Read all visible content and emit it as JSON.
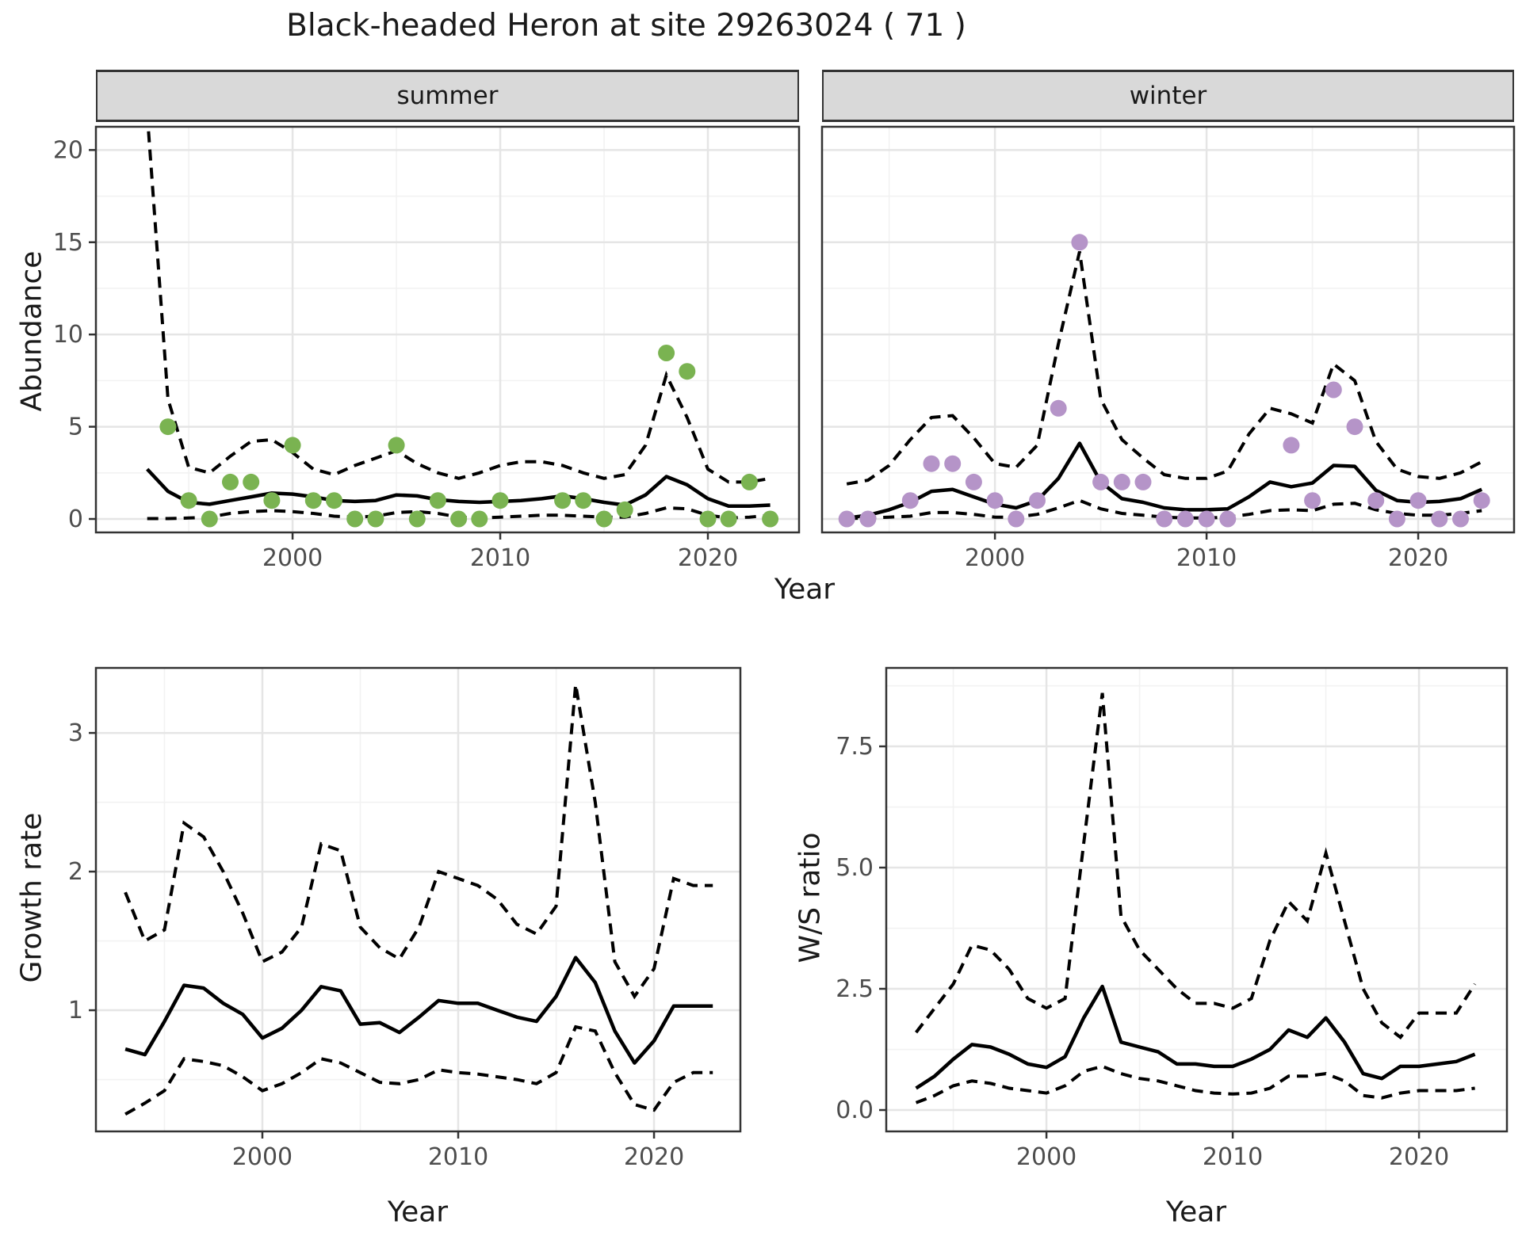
{
  "title": "Black-headed Heron at site 29263024 ( 71 )",
  "facets": {
    "summer": "summer",
    "winter": "winter"
  },
  "axis_titles": {
    "abundance": "Abundance",
    "year": "Year",
    "growth_rate": "Growth rate",
    "ws_ratio": "W/S ratio"
  },
  "colors": {
    "summer_point": "#7ab351",
    "winter_point": "#b594c8",
    "line": "#000000",
    "grid_major": "#e5e5e5",
    "grid_minor": "#f2f2f2",
    "strip_bg": "#d9d9d9",
    "panel_border": "#333333",
    "tick_text": "#4d4d4d"
  },
  "chart_data": [
    {
      "id": "abundance_summer",
      "type": "line",
      "facet": "summer",
      "xlabel": "Year",
      "ylabel": "Abundance",
      "x_range": [
        1990.53,
        2024.39
      ],
      "y_range": [
        -0.73,
        21.26
      ],
      "x_ticks": [
        2000,
        2010,
        2020
      ],
      "x_tick_labels": [
        "2000",
        "2010",
        "2020"
      ],
      "x_minor": [
        1995,
        2005,
        2015
      ],
      "y_ticks": [
        0,
        5,
        10,
        15,
        20
      ],
      "y_tick_labels": [
        "0",
        "5",
        "10",
        "15",
        "20"
      ],
      "y_minor": [
        2.5,
        7.5,
        12.5,
        17.5
      ],
      "years": [
        1993,
        1994,
        1995,
        1996,
        1997,
        1998,
        1999,
        2000,
        2001,
        2002,
        2003,
        2004,
        2005,
        2006,
        2007,
        2008,
        2009,
        2010,
        2011,
        2012,
        2013,
        2014,
        2015,
        2016,
        2017,
        2018,
        2019,
        2020,
        2021,
        2022,
        2023
      ],
      "fit": [
        2.7,
        1.5,
        0.9,
        0.8,
        1.0,
        1.2,
        1.4,
        1.35,
        1.2,
        1.0,
        0.95,
        1.0,
        1.3,
        1.25,
        1.05,
        0.95,
        0.9,
        0.95,
        1.0,
        1.1,
        1.25,
        1.1,
        0.9,
        0.75,
        1.3,
        2.3,
        1.85,
        1.1,
        0.7,
        0.7,
        0.75
      ],
      "upper": [
        22.0,
        6.5,
        2.8,
        2.5,
        3.4,
        4.2,
        4.3,
        3.6,
        2.7,
        2.4,
        2.9,
        3.3,
        3.7,
        3.0,
        2.5,
        2.2,
        2.5,
        2.9,
        3.1,
        3.1,
        2.9,
        2.5,
        2.2,
        2.4,
        4.0,
        7.8,
        5.5,
        2.7,
        2.0,
        2.0,
        2.2
      ],
      "lower": [
        0.02,
        0.02,
        0.05,
        0.1,
        0.3,
        0.4,
        0.45,
        0.4,
        0.3,
        0.15,
        0.1,
        0.15,
        0.35,
        0.4,
        0.3,
        0.1,
        0.05,
        0.1,
        0.15,
        0.2,
        0.2,
        0.15,
        0.1,
        0.1,
        0.3,
        0.6,
        0.55,
        0.2,
        0.05,
        0.1,
        0.2
      ],
      "points": {
        "years": [
          1994,
          1995,
          1996,
          1997,
          1998,
          1999,
          2000,
          2001,
          2002,
          2003,
          2004,
          2005,
          2006,
          2007,
          2008,
          2009,
          2010,
          2013,
          2014,
          2015,
          2016,
          2018,
          2019,
          2020,
          2021,
          2022,
          2023
        ],
        "values": [
          5,
          1,
          0,
          2,
          2,
          1,
          4,
          1,
          1,
          0,
          0,
          4,
          0,
          1,
          0,
          0,
          1,
          1,
          1,
          0,
          0.5,
          9,
          8,
          0,
          0,
          2,
          0
        ]
      },
      "point_color_key": "summer_point"
    },
    {
      "id": "abundance_winter",
      "type": "line",
      "facet": "winter",
      "xlabel": "Year",
      "ylabel": "Abundance",
      "x_range": [
        1991.83,
        2024.53
      ],
      "y_range": [
        -0.73,
        21.26
      ],
      "x_ticks": [
        2000,
        2010,
        2020
      ],
      "x_tick_labels": [
        "2000",
        "2010",
        "2020"
      ],
      "x_minor": [
        1995,
        2005,
        2015
      ],
      "y_ticks": [
        0,
        5,
        10,
        15,
        20
      ],
      "y_tick_labels": [
        "0",
        "5",
        "10",
        "15",
        "20"
      ],
      "y_minor": [
        2.5,
        7.5,
        12.5,
        17.5
      ],
      "years": [
        1993,
        1994,
        1995,
        1996,
        1997,
        1998,
        1999,
        2000,
        2001,
        2002,
        2003,
        2004,
        2005,
        2006,
        2007,
        2008,
        2009,
        2010,
        2011,
        2012,
        2013,
        2014,
        2015,
        2016,
        2017,
        2018,
        2019,
        2020,
        2021,
        2022,
        2023
      ],
      "fit": [
        0.05,
        0.2,
        0.5,
        0.9,
        1.5,
        1.6,
        1.2,
        0.8,
        0.6,
        1.0,
        2.2,
        4.1,
        2.0,
        1.1,
        0.9,
        0.6,
        0.5,
        0.5,
        0.55,
        1.2,
        2.0,
        1.75,
        1.95,
        2.9,
        2.85,
        1.55,
        1.0,
        0.9,
        0.95,
        1.1,
        1.6
      ],
      "upper": [
        1.9,
        2.1,
        2.9,
        4.3,
        5.5,
        5.6,
        4.4,
        3.0,
        2.8,
        4.0,
        9.5,
        14.5,
        6.5,
        4.3,
        3.3,
        2.4,
        2.2,
        2.2,
        2.6,
        4.6,
        6.0,
        5.7,
        5.2,
        8.4,
        7.5,
        4.2,
        2.7,
        2.3,
        2.2,
        2.5,
        3.1
      ],
      "lower": [
        0.02,
        0.05,
        0.1,
        0.15,
        0.35,
        0.35,
        0.25,
        0.1,
        0.1,
        0.25,
        0.6,
        1.0,
        0.55,
        0.3,
        0.2,
        0.1,
        0.05,
        0.05,
        0.1,
        0.25,
        0.45,
        0.5,
        0.45,
        0.8,
        0.85,
        0.5,
        0.3,
        0.2,
        0.2,
        0.3,
        0.45
      ],
      "points": {
        "years": [
          1993,
          1994,
          1996,
          1997,
          1998,
          1999,
          2000,
          2001,
          2002,
          2003,
          2004,
          2005,
          2006,
          2007,
          2008,
          2009,
          2010,
          2011,
          2014,
          2015,
          2016,
          2017,
          2018,
          2019,
          2020,
          2021,
          2022,
          2023
        ],
        "values": [
          0,
          0,
          1,
          3,
          3,
          2,
          1,
          0,
          1,
          6,
          15,
          2,
          2,
          2,
          0,
          0,
          0,
          0,
          4,
          1,
          7,
          5,
          1,
          0,
          1,
          0,
          0,
          1
        ]
      },
      "point_color_key": "winter_point"
    },
    {
      "id": "growth_rate",
      "type": "line",
      "xlabel": "Year",
      "ylabel": "Growth rate",
      "x_range": [
        1991.5,
        2024.41
      ],
      "y_range": [
        0.126,
        3.469
      ],
      "x_ticks": [
        2000,
        2010,
        2020
      ],
      "x_tick_labels": [
        "2000",
        "2010",
        "2020"
      ],
      "x_minor": [
        1995,
        2005,
        2015
      ],
      "y_ticks": [
        1,
        2,
        3
      ],
      "y_tick_labels": [
        "1",
        "2",
        "3"
      ],
      "y_minor": [
        0.5,
        1.5,
        2.5
      ],
      "years": [
        1993,
        1994,
        1995,
        1996,
        1997,
        1998,
        1999,
        2000,
        2001,
        2002,
        2003,
        2004,
        2005,
        2006,
        2007,
        2008,
        2009,
        2010,
        2011,
        2012,
        2013,
        2014,
        2015,
        2016,
        2017,
        2018,
        2019,
        2020,
        2021,
        2022,
        2023
      ],
      "fit": [
        0.72,
        0.68,
        0.92,
        1.18,
        1.16,
        1.05,
        0.97,
        0.8,
        0.87,
        1.0,
        1.17,
        1.14,
        0.9,
        0.91,
        0.84,
        0.95,
        1.07,
        1.05,
        1.05,
        1.0,
        0.95,
        0.92,
        1.1,
        1.38,
        1.2,
        0.85,
        0.62,
        0.78,
        1.03,
        1.03,
        1.03
      ],
      "upper": [
        1.85,
        1.5,
        1.58,
        2.35,
        2.25,
        2.0,
        1.7,
        1.35,
        1.42,
        1.6,
        2.2,
        2.15,
        1.6,
        1.45,
        1.37,
        1.6,
        2.0,
        1.95,
        1.9,
        1.8,
        1.62,
        1.55,
        1.75,
        3.35,
        2.5,
        1.35,
        1.1,
        1.3,
        1.95,
        1.9,
        1.9
      ],
      "lower": [
        0.25,
        0.33,
        0.42,
        0.65,
        0.63,
        0.6,
        0.52,
        0.42,
        0.47,
        0.55,
        0.65,
        0.62,
        0.55,
        0.48,
        0.47,
        0.5,
        0.57,
        0.55,
        0.54,
        0.52,
        0.5,
        0.47,
        0.55,
        0.88,
        0.85,
        0.55,
        0.32,
        0.28,
        0.48,
        0.55,
        0.55
      ],
      "points": {
        "years": [],
        "values": []
      },
      "point_color_key": "line"
    },
    {
      "id": "ws_ratio",
      "type": "line",
      "xlabel": "Year",
      "ylabel": "W/S ratio",
      "x_range": [
        1991.4,
        2024.72
      ],
      "y_range": [
        -0.441,
        9.118
      ],
      "x_ticks": [
        2000,
        2010,
        2020
      ],
      "x_tick_labels": [
        "2000",
        "2010",
        "2020"
      ],
      "x_minor": [
        1995,
        2005,
        2015
      ],
      "y_ticks": [
        0,
        2.5,
        5,
        7.5
      ],
      "y_tick_labels": [
        "0.0",
        "2.5",
        "5.0",
        "7.5"
      ],
      "y_minor": [
        1.25,
        3.75,
        6.25,
        8.75
      ],
      "years": [
        1993,
        1994,
        1995,
        1996,
        1997,
        1998,
        1999,
        2000,
        2001,
        2002,
        2003,
        2004,
        2005,
        2006,
        2007,
        2008,
        2009,
        2010,
        2011,
        2012,
        2013,
        2014,
        2015,
        2016,
        2017,
        2018,
        2019,
        2020,
        2021,
        2022,
        2023
      ],
      "fit": [
        0.45,
        0.7,
        1.05,
        1.35,
        1.3,
        1.15,
        0.95,
        0.88,
        1.1,
        1.9,
        2.55,
        1.4,
        1.3,
        1.2,
        0.95,
        0.95,
        0.9,
        0.9,
        1.05,
        1.25,
        1.65,
        1.5,
        1.9,
        1.4,
        0.75,
        0.65,
        0.9,
        0.9,
        0.95,
        1.0,
        1.15
      ],
      "upper": [
        1.6,
        2.1,
        2.6,
        3.4,
        3.3,
        2.9,
        2.3,
        2.1,
        2.3,
        5.5,
        8.6,
        4.0,
        3.3,
        2.9,
        2.5,
        2.2,
        2.2,
        2.1,
        2.3,
        3.5,
        4.3,
        3.9,
        5.3,
        3.9,
        2.5,
        1.8,
        1.5,
        2.0,
        2.0,
        2.0,
        2.6
      ],
      "lower": [
        0.15,
        0.3,
        0.5,
        0.6,
        0.55,
        0.45,
        0.4,
        0.35,
        0.5,
        0.8,
        0.9,
        0.75,
        0.65,
        0.6,
        0.5,
        0.4,
        0.35,
        0.33,
        0.35,
        0.45,
        0.7,
        0.7,
        0.75,
        0.6,
        0.3,
        0.25,
        0.35,
        0.4,
        0.4,
        0.4,
        0.45
      ],
      "points": {
        "years": [],
        "values": []
      },
      "point_color_key": "line"
    }
  ]
}
